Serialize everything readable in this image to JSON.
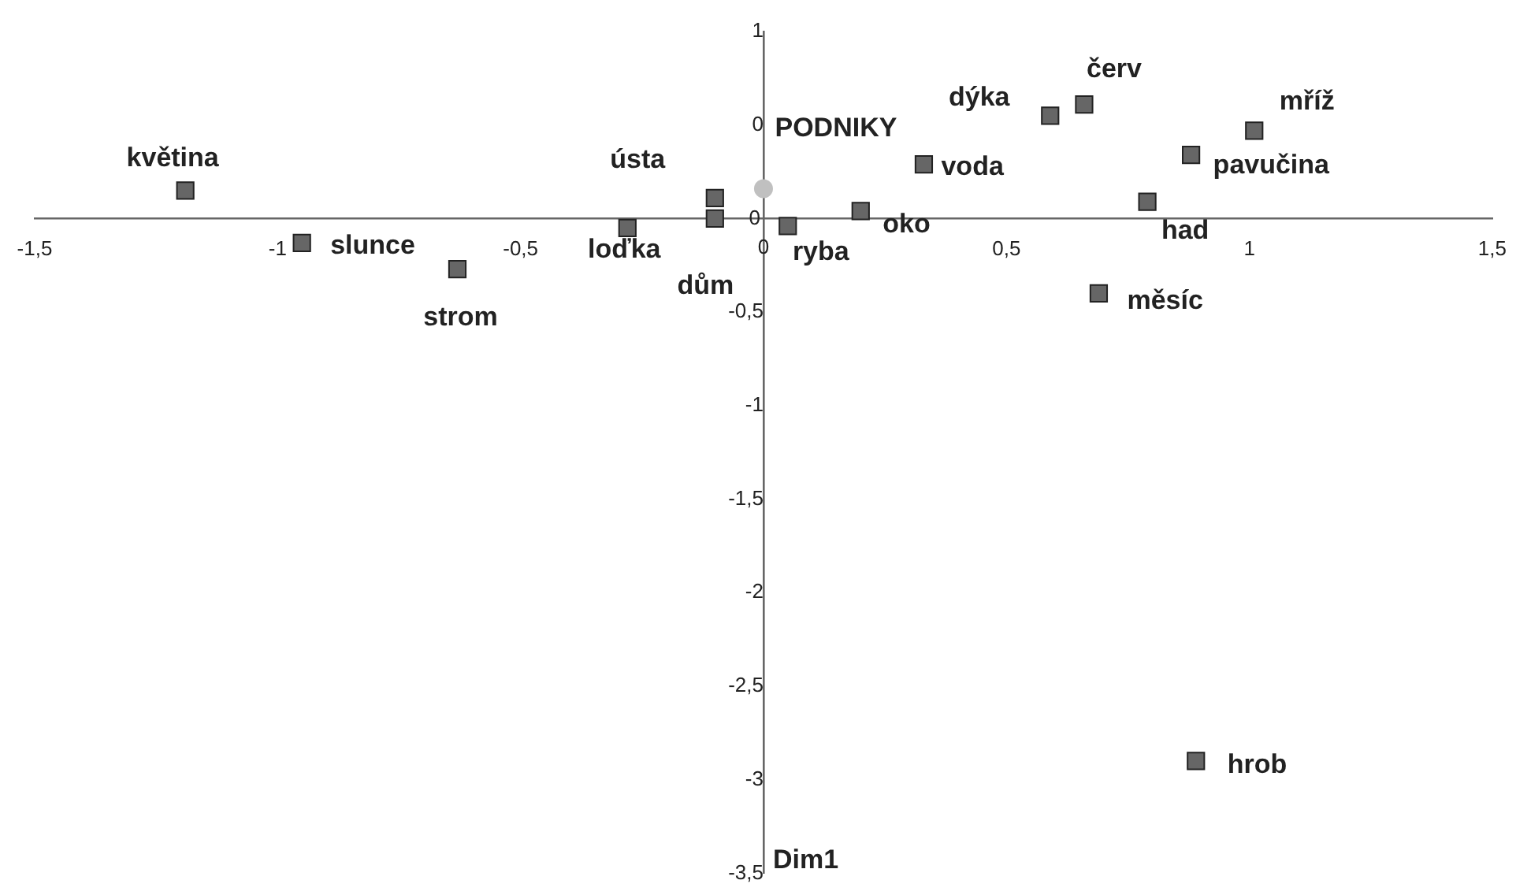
{
  "chart_data": {
    "type": "scatter",
    "series": [
      {
        "color": "#666666",
        "marker": "square",
        "x": [
          -1.19,
          -0.95,
          -0.63,
          -0.28,
          -0.1,
          -0.1,
          0.05,
          0.2,
          0.33,
          0.59,
          0.66,
          1.01,
          0.88,
          0.79,
          0.69,
          0.89
        ],
        "values": [
          0.15,
          -0.13,
          -0.27,
          -0.05,
          0.11,
          0.0,
          -0.04,
          0.04,
          0.29,
          0.55,
          0.61,
          0.47,
          0.34,
          0.09,
          -0.4,
          -2.9
        ]
      },
      {
        "color": "#c0c0c0",
        "marker": "circle",
        "x": [
          0.0
        ],
        "values": [
          0.16
        ]
      }
    ],
    "xlim": [
      -1.5,
      1.5
    ],
    "xticks": [
      {
        "value": -1.5,
        "label": "-1,5"
      },
      -1,
      {
        "value": -0.5,
        "label": "-0,5"
      },
      0,
      {
        "value": 0.5,
        "label": "0,5"
      },
      1,
      {
        "value": 1.5,
        "label": "1,5"
      }
    ],
    "ylim": [
      -3.5,
      1
    ],
    "yticks": [
      1,
      {
        "value": 0.5,
        "label": "0"
      },
      0,
      {
        "value": -0.5,
        "label": "-0,5"
      },
      -1,
      {
        "value": -1.5,
        "label": "-1,5"
      },
      -2,
      {
        "value": -2.5,
        "label": "-2,5"
      },
      -3,
      {
        "value": -3.5,
        "label": "-3,5"
      }
    ],
    "grid": false,
    "annotations": [
      {
        "text": "květina",
        "x": -1.19,
        "y": 0.15
      },
      {
        "text": "slunce",
        "x": -0.95,
        "y": -0.13
      },
      {
        "text": "strom",
        "x": -0.63,
        "y": -0.27
      },
      {
        "text": "loďka",
        "x": -0.28,
        "y": -0.05
      },
      {
        "text": "ústa",
        "x": -0.1,
        "y": 0.11
      },
      {
        "text": "dům",
        "x": -0.1,
        "y": 0.0
      },
      {
        "text": "PODNIKY",
        "x": 0.0,
        "y": 0.16
      },
      {
        "text": "ryba",
        "x": 0.05,
        "y": -0.04
      },
      {
        "text": "oko",
        "x": 0.2,
        "y": 0.04
      },
      {
        "text": "voda",
        "x": 0.33,
        "y": 0.29
      },
      {
        "text": "dýka",
        "x": 0.59,
        "y": 0.55
      },
      {
        "text": "červ",
        "x": 0.66,
        "y": 0.61
      },
      {
        "text": "mříž",
        "x": 1.01,
        "y": 0.47
      },
      {
        "text": "pavučina",
        "x": 0.88,
        "y": 0.34
      },
      {
        "text": "had",
        "x": 0.79,
        "y": 0.09
      },
      {
        "text": "měsíc",
        "x": 0.69,
        "y": -0.4
      },
      {
        "text": "hrob",
        "x": 0.89,
        "y": -2.9
      },
      "Dim1"
    ]
  }
}
